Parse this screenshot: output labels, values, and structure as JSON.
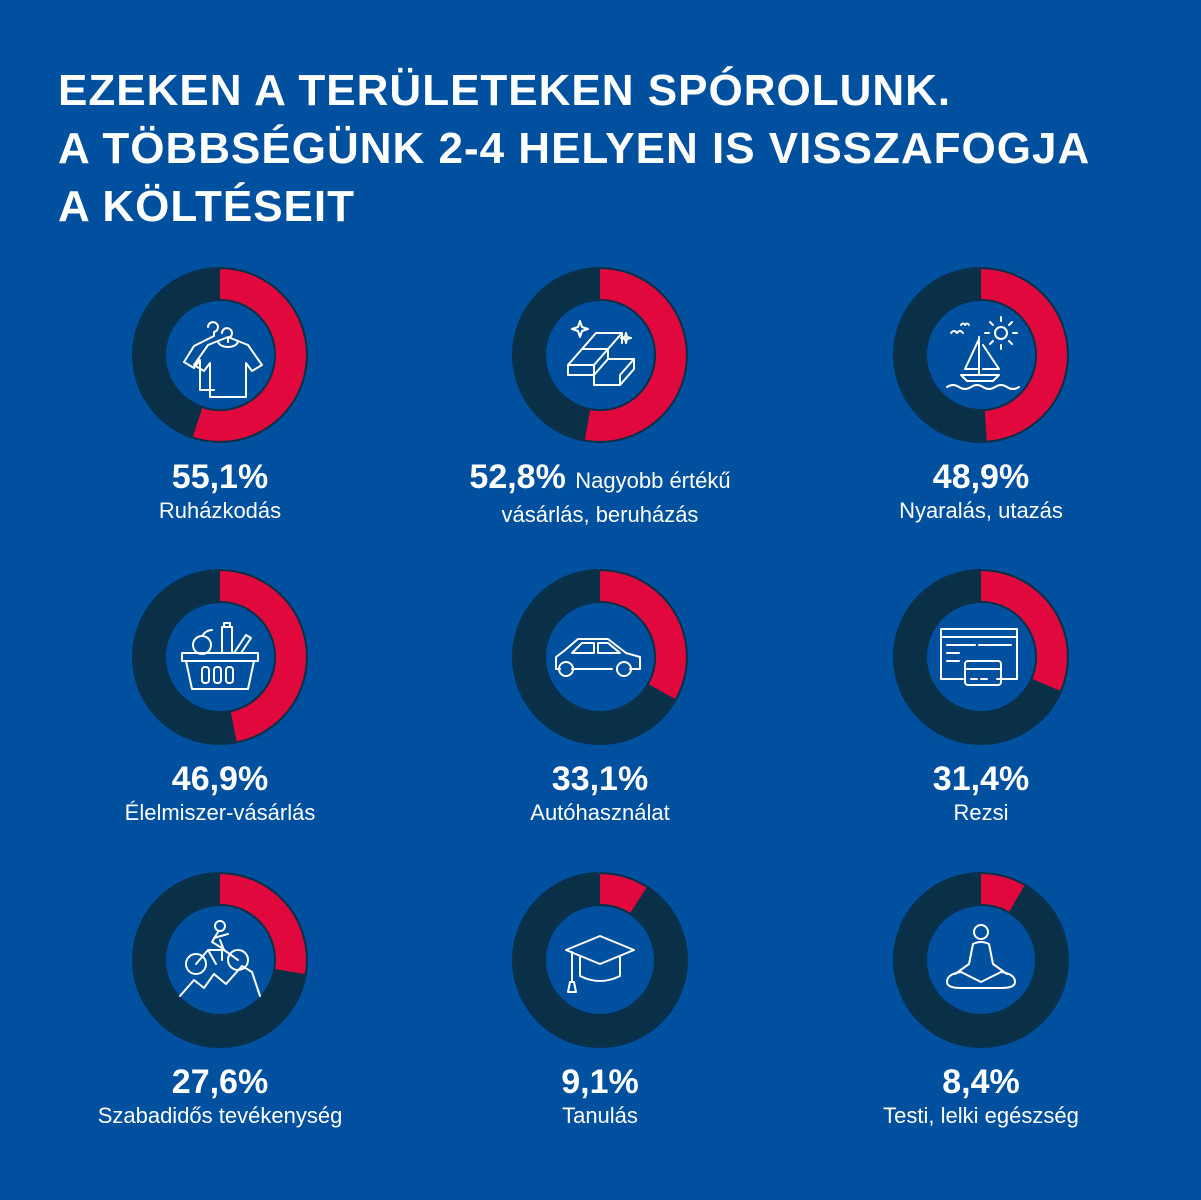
{
  "title": [
    "EZEKEN A TERÜLETEKEN SPÓROLUNK.",
    "A TÖBBSÉGÜNK 2-4 HELYEN IS VISSZAFOGJA",
    "A KÖLTÉSEIT"
  ],
  "colors": {
    "background": "#0050a0",
    "share": "#e0083c",
    "remainder": "#0a3048",
    "icon": "#ffffff"
  },
  "chart_data": {
    "type": "donut",
    "unit": "%",
    "items": [
      {
        "value": 55.1,
        "value_label": "55,1%",
        "label": "Ruházkodás",
        "icon": "clothes-hanger-icon"
      },
      {
        "value": 52.8,
        "value_label": "52,8%",
        "label_inline": "Nagyobb értékű",
        "label": "vásárlás, beruházás",
        "icon": "gold-bars-icon"
      },
      {
        "value": 48.9,
        "value_label": "48,9%",
        "label": "Nyaralás, utazás",
        "icon": "sailboat-sun-icon"
      },
      {
        "value": 46.9,
        "value_label": "46,9%",
        "label": "Élelmiszer-vásárlás",
        "icon": "shopping-basket-icon"
      },
      {
        "value": 33.1,
        "value_label": "33,1%",
        "label": "Autóhasználat",
        "icon": "car-icon"
      },
      {
        "value": 31.4,
        "value_label": "31,4%",
        "label": "Rezsi",
        "icon": "bill-card-icon"
      },
      {
        "value": 27.6,
        "value_label": "27,6%",
        "label": "Szabadidős tevékenység",
        "icon": "mountain-bike-icon"
      },
      {
        "value": 9.1,
        "value_label": "9,1%",
        "label": "Tanulás",
        "icon": "graduation-cap-icon"
      },
      {
        "value": 8.4,
        "value_label": "8,4%",
        "label": "Testi, lelki egészség",
        "icon": "meditation-icon"
      }
    ]
  }
}
